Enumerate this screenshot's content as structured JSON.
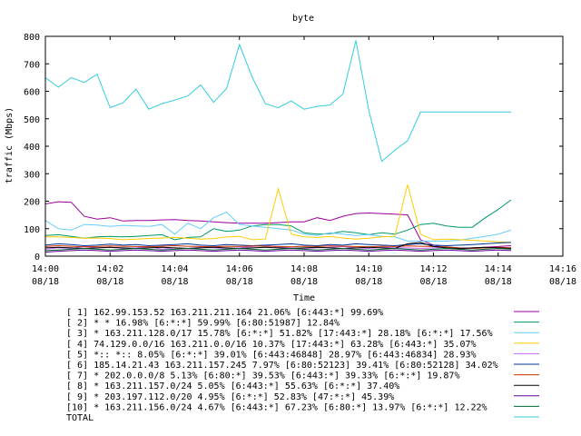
{
  "chart_data": {
    "type": "line",
    "title": "byte",
    "xlabel": "Time",
    "ylabel": "traffic (Mbps)",
    "ylim": [
      0,
      800
    ],
    "yticks": [
      "0",
      "100",
      "200",
      "300",
      "400",
      "500",
      "600",
      "700",
      "800"
    ],
    "xlim_minutes": [
      0,
      16
    ],
    "xticks": [
      {
        "time": "14:00",
        "date": "08/18"
      },
      {
        "time": "14:02",
        "date": "08/18"
      },
      {
        "time": "14:04",
        "date": "08/18"
      },
      {
        "time": "14:06",
        "date": "08/18"
      },
      {
        "time": "14:08",
        "date": "08/18"
      },
      {
        "time": "14:10",
        "date": "08/18"
      },
      {
        "time": "14:12",
        "date": "08/18"
      },
      {
        "time": "14:14",
        "date": "08/18"
      },
      {
        "time": "14:16",
        "date": "08/18"
      }
    ],
    "x_minutes": [
      0,
      0.4,
      0.8,
      1.2,
      1.6,
      2.0,
      2.4,
      2.8,
      3.2,
      3.6,
      4.0,
      4.4,
      4.8,
      5.2,
      5.6,
      6.0,
      6.4,
      6.8,
      7.2,
      7.6,
      8.0,
      8.4,
      8.8,
      9.2,
      9.6,
      10.0,
      10.4,
      10.8,
      11.2,
      11.6,
      12.0,
      12.4,
      12.8,
      13.2,
      13.6,
      14.0,
      14.4
    ],
    "series": [
      {
        "name": "[ 1] 162.99.153.52 163.211.211.164 21.06%  [6:443:*] 99.69%",
        "color": "#990099",
        "values": [
          190,
          198,
          196,
          145,
          135,
          140,
          128,
          130,
          130,
          132,
          133,
          130,
          128,
          125,
          122,
          120,
          120,
          120,
          122,
          125,
          125,
          140,
          130,
          145,
          155,
          157,
          155,
          153,
          150,
          60,
          40,
          30,
          25,
          30,
          32,
          35,
          38
        ]
      },
      {
        "name": "[ 2] * * 16.98%  [6:*:*] 59.99% [6:80:51987] 12.84%",
        "color": "#009966",
        "values": [
          75,
          78,
          72,
          65,
          70,
          72,
          70,
          72,
          75,
          78,
          60,
          68,
          70,
          100,
          90,
          95,
          110,
          115,
          115,
          110,
          85,
          80,
          82,
          90,
          85,
          78,
          85,
          80,
          95,
          115,
          120,
          110,
          105,
          105,
          140,
          170,
          205
        ]
      },
      {
        "name": "[ 3] * 163.211.128.0/17 15.78%  [6:*:*] 51.82% [17:443:*] 28.18% [6:*:*] 17.56%",
        "color": "#66ccff",
        "values": [
          130,
          100,
          95,
          115,
          113,
          108,
          112,
          110,
          108,
          115,
          80,
          120,
          100,
          140,
          160,
          115,
          110,
          105,
          100,
          95,
          80,
          75,
          85,
          80,
          75,
          78,
          72,
          70,
          55,
          55,
          55,
          55,
          58,
          65,
          72,
          80,
          95
        ]
      },
      {
        "name": "[ 4] 74.129.0.0/16 163.211.0.0/16 10.37%  [17:443:*] 63.28% [6:443:*] 35.07%",
        "color": "#ffcc00",
        "values": [
          70,
          70,
          68,
          65,
          66,
          64,
          60,
          62,
          64,
          66,
          68,
          65,
          62,
          64,
          70,
          72,
          60,
          62,
          245,
          80,
          70,
          68,
          72,
          66,
          62,
          65,
          70,
          72,
          260,
          80,
          60,
          62,
          60,
          58,
          55,
          52,
          50
        ]
      },
      {
        "name": "[ 5] *:: *:: 8.05%  [6:*:*] 39.01% [6:443:46848] 28.97% [6:443:46834] 28.93%",
        "color": "#cc66ff",
        "values": [
          25,
          30,
          28,
          35,
          30,
          32,
          28,
          30,
          35,
          25,
          30,
          28,
          32,
          30,
          28,
          30,
          35,
          40,
          32,
          30,
          28,
          30,
          32,
          35,
          30,
          28,
          32,
          30,
          30,
          28,
          30,
          32,
          30,
          28,
          30,
          32,
          30
        ]
      },
      {
        "name": "[ 6] 185.14.21.43 163.211.157.245 7.97%  [6:80:52123] 39.41% [6:80:52128] 34.02%",
        "color": "#003399",
        "values": [
          40,
          45,
          42,
          38,
          40,
          44,
          40,
          42,
          38,
          40,
          42,
          45,
          40,
          38,
          42,
          40,
          38,
          40,
          42,
          45,
          40,
          38,
          42,
          40,
          45,
          42,
          40,
          38,
          42,
          45,
          40,
          38,
          40,
          42,
          45,
          48,
          50
        ]
      },
      {
        "name": "[ 7] * 202.0.0.0/8 5.13%  [6:80:*] 39.53% [6:443:*] 39.33% [6:*:*] 19.87%",
        "color": "#cc3300",
        "values": [
          35,
          38,
          36,
          34,
          35,
          37,
          36,
          35,
          34,
          36,
          38,
          36,
          35,
          34,
          36,
          35,
          37,
          36,
          35,
          34,
          36,
          35,
          37,
          36,
          35,
          34,
          36,
          35,
          37,
          36,
          35,
          34,
          30,
          28,
          30,
          32,
          30
        ]
      },
      {
        "name": "[ 8] * 163.211.157.0/24 5.05%  [6:443:*] 55.63% [6:*:*] 37.40%",
        "color": "#000000",
        "values": [
          30,
          32,
          30,
          28,
          30,
          32,
          30,
          28,
          30,
          32,
          30,
          28,
          30,
          32,
          30,
          28,
          30,
          32,
          30,
          28,
          30,
          32,
          30,
          28,
          30,
          32,
          30,
          28,
          45,
          50,
          35,
          30,
          28,
          30,
          32,
          30,
          28
        ]
      },
      {
        "name": "[ 9] * 203.197.112.0/20 4.95%  [6:*:*] 52.83% [47:*:*] 45.39%",
        "color": "#660099",
        "values": [
          15,
          18,
          20,
          22,
          20,
          18,
          20,
          22,
          20,
          18,
          20,
          22,
          20,
          18,
          20,
          22,
          20,
          18,
          20,
          22,
          20,
          18,
          20,
          22,
          20,
          18,
          20,
          22,
          20,
          18,
          20,
          22,
          20,
          18,
          20,
          22,
          20
        ]
      },
      {
        "name": "[10] * 163.211.156.0/24 4.67%  [6:443:*] 67.23% [6:80:*] 13.97% [6:*:*] 12.22%",
        "color": "#006633",
        "values": [
          20,
          22,
          25,
          28,
          25,
          22,
          25,
          28,
          25,
          22,
          25,
          28,
          25,
          22,
          25,
          28,
          25,
          22,
          25,
          28,
          25,
          22,
          25,
          28,
          25,
          22,
          25,
          28,
          25,
          22,
          25,
          28,
          25,
          22,
          25,
          28,
          25
        ]
      },
      {
        "name": "TOTAL",
        "color": "#33ccdd",
        "values": [
          650,
          615,
          650,
          632,
          662,
          540,
          558,
          608,
          535,
          555,
          568,
          583,
          623,
          560,
          610,
          770,
          650,
          555,
          540,
          565,
          535,
          545,
          550,
          590,
          785,
          530,
          345,
          385,
          420,
          525,
          525,
          525,
          525,
          525,
          525,
          525,
          525
        ]
      }
    ]
  }
}
